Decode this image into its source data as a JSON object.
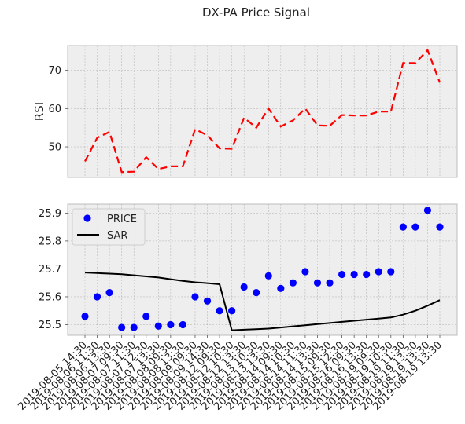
{
  "chart_data": {
    "title": "DX-PA Price Signal",
    "x_labels": [
      "2019-08-05 14:30",
      "2019-08-06 11:30",
      "2019-08-06 13:30",
      "2019-08-07 09:30",
      "2019-08-07 11:30",
      "2019-08-07 12:30",
      "2019-08-07 13:30",
      "2019-08-08 09:30",
      "2019-08-08 13:30",
      "2019-08-09 09:30",
      "2019-08-09 14:30",
      "2019-08-12 09:30",
      "2019-08-12 10:30",
      "2019-08-12 13:30",
      "2019-08-13 10:30",
      "2019-08-13 13:30",
      "2019-08-14 09:30",
      "2019-08-14 10:30",
      "2019-08-14 11:30",
      "2019-08-14 13:30",
      "2019-08-15 09:30",
      "2019-08-15 12:30",
      "2019-08-16 09:30",
      "2019-08-16 13:30",
      "2019-08-19 09:30",
      "2019-08-19 10:30",
      "2019-08-19 11:30",
      "2019-08-19 13:30",
      "2019-08-19 13:30",
      "2019-08-19 13:30"
    ],
    "x_labels_note": "",
    "panels": [
      {
        "type": "line",
        "ylabel": "RSI",
        "ylim": [
          42,
          76.5
        ],
        "yticks": [
          50,
          60,
          70
        ],
        "grid": true,
        "series": [
          {
            "color": "#ff0000",
            "style": "dashed",
            "values": [
              46.2,
              52.4,
              53.9,
              43.4,
              43.5,
              47.3,
              44.2,
              44.9,
              44.9,
              54.6,
              53.0,
              49.6,
              49.5,
              57.6,
              55.0,
              60.0,
              55.3,
              56.9,
              60.0,
              55.6,
              55.5,
              58.3,
              58.2,
              58.2,
              59.2,
              59.2,
              71.9,
              71.9,
              75.3,
              66.8
            ]
          }
        ]
      },
      {
        "type": "scatter+line",
        "ylim": [
          25.462,
          25.932
        ],
        "yticks": [
          25.5,
          25.6,
          25.7,
          25.8,
          25.9
        ],
        "grid": true,
        "legend_position": "top-left",
        "series": [
          {
            "name": "PRICE",
            "type": "scatter",
            "color": "#0000ff",
            "values": [
              25.53,
              25.6,
              25.615,
              25.49,
              25.49,
              25.53,
              25.495,
              25.5,
              25.5,
              25.6,
              25.585,
              25.55,
              25.55,
              25.635,
              25.615,
              25.675,
              25.63,
              25.65,
              25.69,
              25.65,
              25.65,
              25.68,
              25.68,
              25.68,
              25.69,
              25.69,
              25.85,
              25.85,
              25.91,
              25.85
            ]
          },
          {
            "name": "SAR",
            "type": "line",
            "color": "#000000",
            "values": [
              25.687,
              25.685,
              25.683,
              25.681,
              25.677,
              25.673,
              25.669,
              25.663,
              25.657,
              25.652,
              25.649,
              25.645,
              25.48,
              25.482,
              25.484,
              25.486,
              25.49,
              25.494,
              25.498,
              25.502,
              25.506,
              25.51,
              25.514,
              25.518,
              25.522,
              25.526,
              25.536,
              25.55,
              25.568,
              25.588
            ]
          }
        ]
      }
    ]
  }
}
